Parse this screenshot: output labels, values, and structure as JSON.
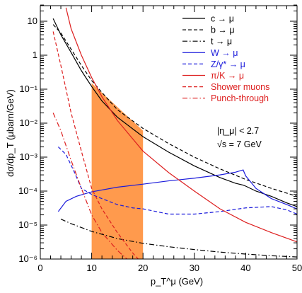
{
  "chart_data": {
    "type": "line",
    "xlabel": "p_T^μ (GeV)",
    "ylabel": "dσ/dp_T (μbarn/GeV)",
    "xlim": [
      0,
      50
    ],
    "ylim": [
      1e-06,
      30
    ],
    "yscale": "log",
    "x_ticks": [
      "0",
      "10",
      "20",
      "30",
      "40",
      "50"
    ],
    "y_ticks": [
      "10⁻⁶",
      "10⁻⁵",
      "10⁻⁴",
      "10⁻³",
      "10⁻²",
      "10⁻¹",
      "1",
      "10"
    ],
    "shaded_band": {
      "x": [
        10,
        20
      ],
      "color": "#ff9a4d",
      "top_y": [
        0.15,
        0.006
      ]
    },
    "legend_position": "top-right",
    "annotations": [
      "|η_μ| < 2.7",
      "√s = 7 GeV"
    ],
    "series": [
      {
        "name": "c → μ",
        "color": "#000000",
        "dash": "solid",
        "x": [
          2.5,
          4,
          6,
          8,
          10,
          12,
          15,
          20,
          25,
          30,
          35,
          38,
          39.5,
          40,
          42,
          45,
          48,
          50
        ],
        "y": [
          12,
          4,
          1.2,
          0.35,
          0.12,
          0.045,
          0.015,
          0.004,
          0.0014,
          0.00055,
          0.00025,
          0.00017,
          0.00015,
          0.00014,
          0.0001,
          7e-05,
          4.5e-05,
          3.5e-05
        ]
      },
      {
        "name": "b → μ",
        "color": "#000000",
        "dash": "dashed",
        "x": [
          2.5,
          4,
          6,
          8,
          10,
          12,
          15,
          20,
          25,
          30,
          35,
          40,
          45,
          50
        ],
        "y": [
          8,
          4.5,
          1.5,
          0.5,
          0.18,
          0.08,
          0.025,
          0.007,
          0.0025,
          0.001,
          0.00045,
          0.00022,
          0.00012,
          7e-05
        ]
      },
      {
        "name": "t → μ",
        "color": "#000000",
        "dash": "dashdot",
        "x": [
          4,
          6,
          10,
          15,
          20,
          25,
          30,
          35,
          40,
          45,
          50
        ],
        "y": [
          1.5e-05,
          1.1e-05,
          6.5e-06,
          4e-06,
          2.9e-06,
          2.3e-06,
          1.9e-06,
          1.6e-06,
          1.4e-06,
          1.25e-06,
          1.15e-06
        ]
      },
      {
        "name": "W → μ",
        "color": "#1a1adb",
        "dash": "solid",
        "x": [
          3.5,
          5,
          7,
          10,
          15,
          20,
          25,
          30,
          35,
          38,
          39.5,
          40,
          42,
          45,
          48,
          50
        ],
        "y": [
          2.5e-05,
          5e-05,
          7e-05,
          9.5e-05,
          0.00013,
          0.00016,
          0.0002,
          0.00024,
          0.0003,
          0.00036,
          0.00042,
          0.00028,
          0.00012,
          6e-05,
          4e-05,
          3e-05
        ]
      },
      {
        "name": "Z/γ* → μ",
        "color": "#1a1adb",
        "dash": "dashed",
        "x": [
          3.5,
          5,
          6.5,
          8,
          10,
          12,
          15,
          18,
          20,
          25,
          30,
          35,
          40,
          45,
          48,
          50
        ],
        "y": [
          0.002,
          0.0012,
          0.0004,
          0.00012,
          8e-05,
          6e-05,
          4e-05,
          3.2e-05,
          3e-05,
          2.1e-05,
          2.1e-05,
          2.5e-05,
          3.2e-05,
          3.5e-05,
          2.8e-05,
          2.1e-05
        ]
      },
      {
        "name": "π/K → μ",
        "color": "#dd1f1f",
        "dash": "solid",
        "x": [
          5,
          6,
          8,
          10,
          12,
          15,
          20,
          25,
          30,
          35,
          40,
          45,
          50
        ],
        "y": [
          25,
          6,
          1,
          0.22,
          0.06,
          0.012,
          0.0015,
          0.00035,
          0.0001,
          3e-05,
          1.2e-05,
          6e-06,
          3.2e-06
        ]
      },
      {
        "name": "Shower muons",
        "color": "#dd1f1f",
        "dash": "dashed",
        "x": [
          2.5,
          4,
          6,
          8,
          10,
          12,
          15,
          18,
          20
        ],
        "y": [
          5,
          0.5,
          0.02,
          0.0015,
          0.00012,
          3e-05,
          6e-06,
          1.5e-06,
          7e-07
        ]
      },
      {
        "name": "Punch-through",
        "color": "#dd1f1f",
        "dash": "dashdot",
        "x": [
          2.5,
          4,
          6,
          8,
          10,
          12,
          15,
          18
        ],
        "y": [
          0.02,
          0.006,
          0.0008,
          0.00012,
          2e-05,
          6e-06,
          1.8e-06,
          7e-07
        ]
      }
    ]
  }
}
